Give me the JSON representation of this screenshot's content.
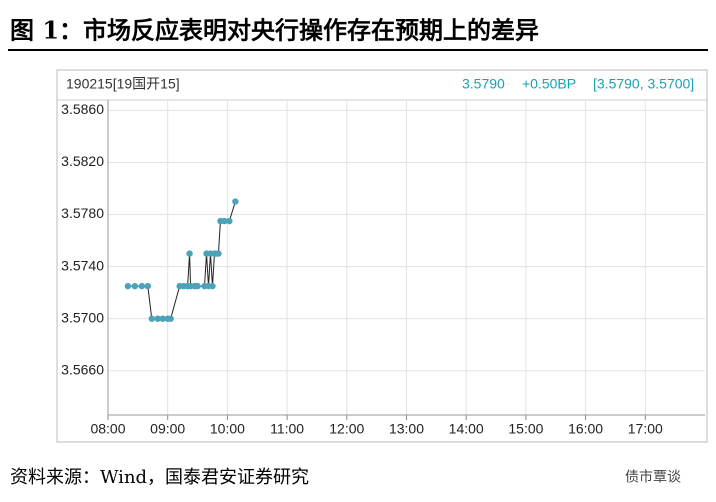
{
  "chart_data": {
    "type": "line",
    "title": "图 1：市场反应表明对央行操作存在预期上的差异",
    "instrument": "190215[19国开15]",
    "last_price": "3.5790",
    "change": "+0.50BP",
    "range": "[3.5790, 3.5700]",
    "source": "资料来源：Wind，国泰君安证券研究",
    "watermark": "债市覃谈",
    "x": [
      "08:20",
      "08:27",
      "08:34",
      "08:40",
      "08:44",
      "08:50",
      "08:55",
      "09:00",
      "09:03",
      "09:12",
      "09:16",
      "09:20",
      "09:22",
      "09:23",
      "09:27",
      "09:30",
      "09:37",
      "09:39",
      "09:41",
      "09:43",
      "09:45",
      "09:47",
      "09:48",
      "09:51",
      "09:53",
      "09:57",
      "10:02",
      "10:08"
    ],
    "series": [
      {
        "name": "190215",
        "color": "#4ba3b9",
        "values": [
          3.5725,
          3.5725,
          3.5725,
          3.5725,
          3.57,
          3.57,
          3.57,
          3.57,
          3.57,
          3.5725,
          3.5725,
          3.5725,
          3.575,
          3.5725,
          3.5725,
          3.5725,
          3.5725,
          3.575,
          3.5725,
          3.575,
          3.5725,
          3.575,
          3.575,
          3.575,
          3.5775,
          3.5775,
          3.5775,
          3.579
        ]
      }
    ],
    "xlim": [
      "08:00",
      "18:00"
    ],
    "xticks": [
      "08:00",
      "09:00",
      "10:00",
      "11:00",
      "12:00",
      "13:00",
      "14:00",
      "15:00",
      "16:00",
      "17:00"
    ],
    "ylim": [
      3.5626,
      3.5868
    ],
    "yticks": [
      {
        "value": 3.566,
        "label": "3.5660"
      },
      {
        "value": 3.57,
        "label": "3.5700"
      },
      {
        "value": 3.574,
        "label": "3.5740"
      },
      {
        "value": 3.578,
        "label": "3.5780"
      },
      {
        "value": 3.582,
        "label": "3.5820"
      },
      {
        "value": 3.586,
        "label": "3.5860"
      }
    ],
    "grid": true
  }
}
